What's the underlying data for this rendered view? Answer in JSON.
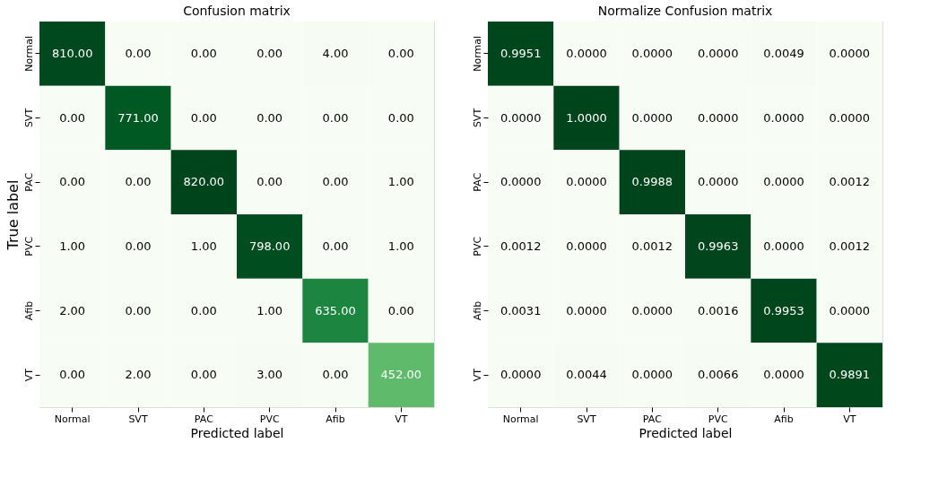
{
  "chart_data": [
    {
      "type": "heatmap",
      "title": "Confusion matrix",
      "xlabel": "Predicted label",
      "ylabel": "True label",
      "categories": [
        "Normal",
        "SVT",
        "PAC",
        "PVC",
        "Afib",
        "VT"
      ],
      "y_categories": [
        "Normal",
        "SVT",
        "PAC",
        "PVC",
        "Afib",
        "VT"
      ],
      "cells": [
        [
          810,
          0,
          0,
          0,
          4,
          0
        ],
        [
          0,
          771,
          0,
          0,
          0,
          0
        ],
        [
          0,
          0,
          820,
          0,
          0,
          1
        ],
        [
          1,
          0,
          1,
          798,
          0,
          1
        ],
        [
          2,
          0,
          0,
          1,
          635,
          0
        ],
        [
          0,
          2,
          0,
          3,
          0,
          452
        ]
      ],
      "cell_labels": [
        [
          "810.00",
          "0.00",
          "0.00",
          "0.00",
          "4.00",
          "0.00"
        ],
        [
          "0.00",
          "771.00",
          "0.00",
          "0.00",
          "0.00",
          "0.00"
        ],
        [
          "0.00",
          "0.00",
          "820.00",
          "0.00",
          "0.00",
          "1.00"
        ],
        [
          "1.00",
          "0.00",
          "1.00",
          "798.00",
          "0.00",
          "1.00"
        ],
        [
          "2.00",
          "0.00",
          "0.00",
          "1.00",
          "635.00",
          "0.00"
        ],
        [
          "0.00",
          "2.00",
          "0.00",
          "3.00",
          "0.00",
          "452.00"
        ]
      ]
    },
    {
      "type": "heatmap",
      "title": "Normalize Confusion matrix",
      "xlabel": "Predicted label",
      "categories": [
        "Normal",
        "SVT",
        "PAC",
        "PVC",
        "Afib",
        "VT"
      ],
      "y_categories": [
        "Normal",
        "SVT",
        "PAC",
        "PVC",
        "Afib",
        "VT"
      ],
      "cells": [
        [
          0.9951,
          0,
          0,
          0,
          0.0049,
          0
        ],
        [
          0,
          1.0,
          0,
          0,
          0,
          0
        ],
        [
          0,
          0,
          0.9988,
          0,
          0,
          0.0012
        ],
        [
          0.0012,
          0,
          0.0012,
          0.9963,
          0,
          0.0012
        ],
        [
          0.0031,
          0,
          0,
          0.0016,
          0.9953,
          0
        ],
        [
          0,
          0.0044,
          0,
          0.0066,
          0,
          0.9891
        ]
      ],
      "cell_labels": [
        [
          "0.9951",
          "0.0000",
          "0.0000",
          "0.0000",
          "0.0049",
          "0.0000"
        ],
        [
          "0.0000",
          "1.0000",
          "0.0000",
          "0.0000",
          "0.0000",
          "0.0000"
        ],
        [
          "0.0000",
          "0.0000",
          "0.9988",
          "0.0000",
          "0.0000",
          "0.0012"
        ],
        [
          "0.0012",
          "0.0000",
          "0.0012",
          "0.9963",
          "0.0000",
          "0.0012"
        ],
        [
          "0.0031",
          "0.0000",
          "0.0000",
          "0.0016",
          "0.9953",
          "0.0000"
        ],
        [
          "0.0000",
          "0.0044",
          "0.0000",
          "0.0066",
          "0.0000",
          "0.9891"
        ]
      ]
    }
  ]
}
